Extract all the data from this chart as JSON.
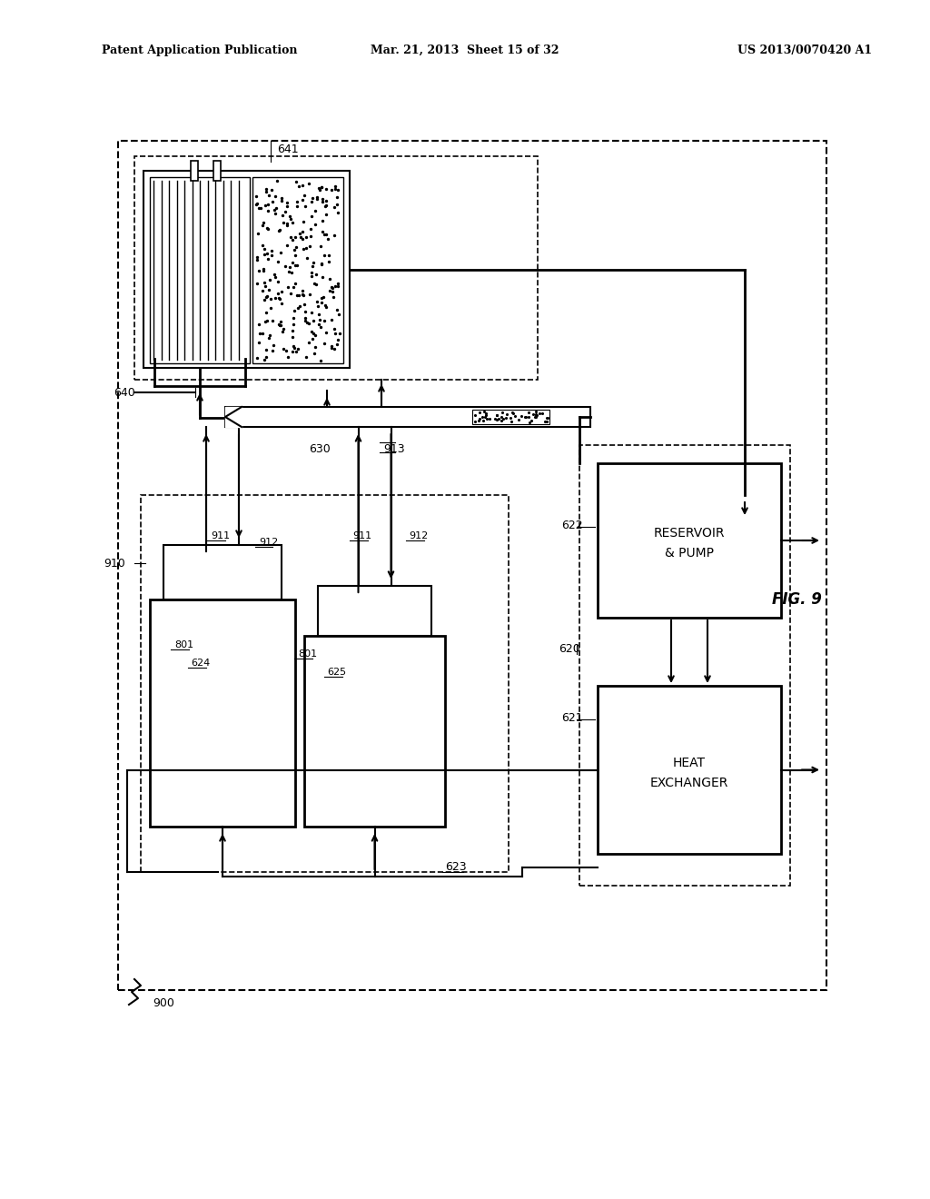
{
  "title_left": "Patent Application Publication",
  "title_center": "Mar. 21, 2013  Sheet 15 of 32",
  "title_right": "US 2013/0070420 A1",
  "fig_label": "FIG. 9",
  "bg_color": "#ffffff"
}
